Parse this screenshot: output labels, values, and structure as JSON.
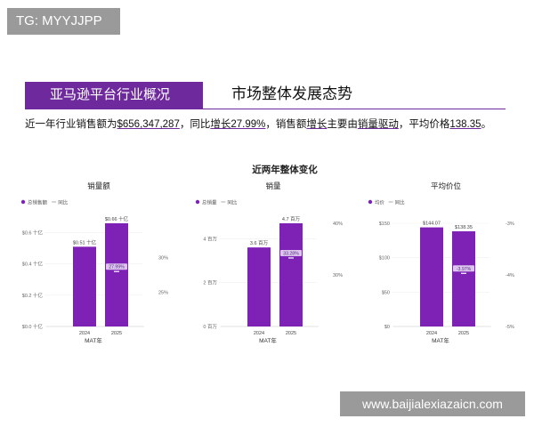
{
  "watermark_tg": "TG: MYYJJPP",
  "watermark_site": "www.baijialexiazaicn.com",
  "banner": {
    "left_title": "亚马逊平台行业概况",
    "right_title": "市场整体发展态势"
  },
  "summary": {
    "p1": "近一年行业销售额为",
    "v1": "$656,347,287",
    "p2": "，同比",
    "v2": "增长27.99%",
    "p3": "，销售额",
    "v3": "增长",
    "p4": "主要由",
    "v4": "销量驱动",
    "p5": "，平均价格",
    "v5": "138.35",
    "p6": "。"
  },
  "colors": {
    "bar": "#7e22b6",
    "accent": "#6e2a9c",
    "yoy_badge": "#dcc6ee"
  },
  "chart_data": [
    {
      "type": "bar",
      "title": "销量额",
      "legend": [
        "总销售额",
        "同比"
      ],
      "categories": [
        "2024",
        "2025"
      ],
      "values": [
        0.51,
        0.66
      ],
      "value_labels": [
        "$0.51 十亿",
        "$0.66 十亿"
      ],
      "ylim": [
        0,
        0.66
      ],
      "yticks": [
        0,
        0.2,
        0.4,
        0.6
      ],
      "ytick_labels": [
        "$0.0 十亿",
        "$0.2 十亿",
        "$0.4 十亿",
        "$0.6 十亿"
      ],
      "y2lim": [
        20,
        35
      ],
      "y2ticks": [
        25,
        30
      ],
      "y2tick_labels": [
        "25%",
        "30%"
      ],
      "yoy_value": 27.99,
      "yoy_label": "27.99%",
      "xlabel": "MAT年"
    },
    {
      "type": "bar",
      "title": "销量",
      "legend": [
        "总销量",
        "同比"
      ],
      "categories": [
        "2024",
        "2025"
      ],
      "values": [
        3.6,
        4.7
      ],
      "value_labels": [
        "3.6 百万",
        "4.7 百万"
      ],
      "ylim": [
        0,
        4.7
      ],
      "yticks": [
        0,
        2,
        4
      ],
      "ytick_labels": [
        "0 百万",
        "2 百万",
        "4 百万"
      ],
      "y2lim": [
        20,
        40
      ],
      "y2ticks": [
        30,
        40
      ],
      "y2tick_labels": [
        "30%",
        "40%"
      ],
      "yoy_value": 33.28,
      "yoy_label": "33.28%",
      "xlabel": "MAT年"
    },
    {
      "type": "bar",
      "title": "平均价位",
      "legend": [
        "均价",
        "同比"
      ],
      "categories": [
        "2024",
        "2025"
      ],
      "values": [
        144.07,
        138.35
      ],
      "value_labels": [
        "$144.07",
        "$138.35"
      ],
      "ylim": [
        0,
        150
      ],
      "yticks": [
        0,
        50,
        100,
        150
      ],
      "ytick_labels": [
        "$0",
        "$50",
        "$100",
        "$150"
      ],
      "y2lim": [
        -5,
        -3
      ],
      "y2ticks": [
        -5,
        -4,
        -3
      ],
      "y2tick_labels": [
        "-5%",
        "-4%",
        "-3%"
      ],
      "yoy_value": -3.97,
      "yoy_label": "-3.97%",
      "xlabel": "MAT年"
    }
  ],
  "charts_title": "近两年整体变化"
}
